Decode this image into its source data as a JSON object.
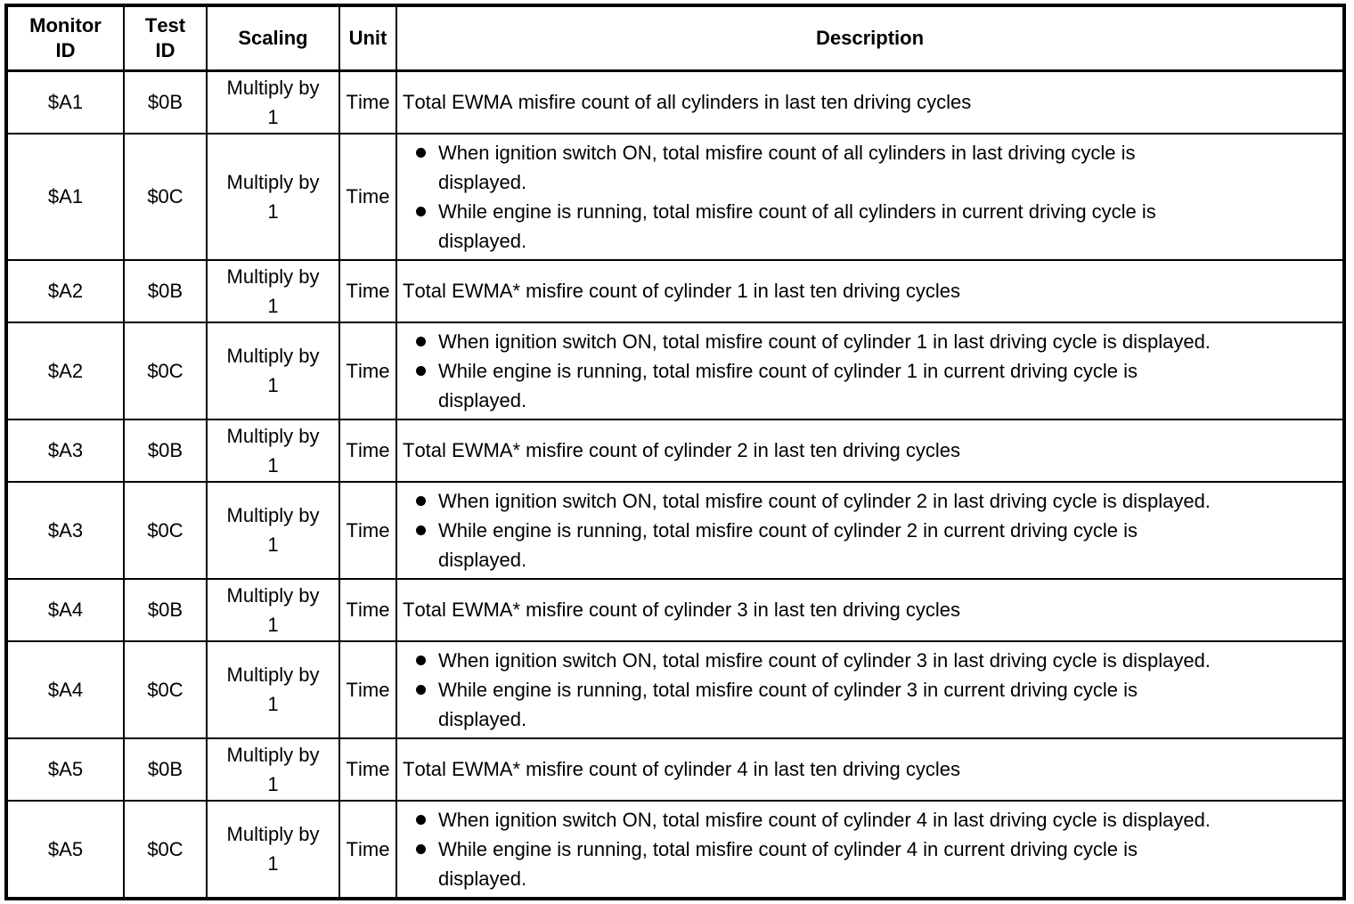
{
  "colors": {
    "ink": "#000000",
    "paper": "#ffffff"
  },
  "table": {
    "headers": [
      "Monitor ID",
      "Test ID",
      "Scaling",
      "Unit",
      "Description"
    ],
    "rows": [
      {
        "monitor_id": "$A1",
        "test_id": "$0B",
        "scaling": "Multiply by 1",
        "unit": "Time",
        "description": {
          "text": "Total EWMA misfire count of all cylinders in last ten driving cycles"
        }
      },
      {
        "monitor_id": "$A1",
        "test_id": "$0C",
        "scaling": "Multiply by 1",
        "unit": "Time",
        "description": {
          "bullets": [
            "When ignition switch ON, total misfire count of all cylinders in last driving cycle is displayed.",
            "While engine is running, total misfire count of all cylinders in current driving cycle is displayed."
          ]
        }
      },
      {
        "monitor_id": "$A2",
        "test_id": "$0B",
        "scaling": "Multiply by 1",
        "unit": "Time",
        "description": {
          "text": "Total EWMA* misfire count of cylinder 1 in last ten driving cycles"
        }
      },
      {
        "monitor_id": "$A2",
        "test_id": "$0C",
        "scaling": "Multiply by 1",
        "unit": "Time",
        "description": {
          "bullets": [
            "When ignition switch ON, total misfire count of cylinder 1 in last driving cycle is displayed.",
            "While engine is running, total misfire count of cylinder 1 in current driving cycle is displayed."
          ]
        }
      },
      {
        "monitor_id": "$A3",
        "test_id": "$0B",
        "scaling": "Multiply by 1",
        "unit": "Time",
        "description": {
          "text": "Total EWMA* misfire count of cylinder 2 in last ten driving cycles"
        }
      },
      {
        "monitor_id": "$A3",
        "test_id": "$0C",
        "scaling": "Multiply by 1",
        "unit": "Time",
        "description": {
          "bullets": [
            "When ignition switch ON, total misfire count of cylinder 2 in last driving cycle is displayed.",
            "While engine is running, total misfire count of cylinder 2 in current driving cycle is displayed."
          ]
        }
      },
      {
        "monitor_id": "$A4",
        "test_id": "$0B",
        "scaling": "Multiply by 1",
        "unit": "Time",
        "description": {
          "text": "Total EWMA* misfire count of cylinder 3 in last ten driving cycles"
        }
      },
      {
        "monitor_id": "$A4",
        "test_id": "$0C",
        "scaling": "Multiply by 1",
        "unit": "Time",
        "description": {
          "bullets": [
            "When ignition switch ON, total misfire count of cylinder 3 in last driving cycle is displayed.",
            "While engine is running, total misfire count of cylinder 3 in current driving cycle is displayed."
          ]
        }
      },
      {
        "monitor_id": "$A5",
        "test_id": "$0B",
        "scaling": "Multiply by 1",
        "unit": "Time",
        "description": {
          "text": "Total EWMA* misfire count of cylinder 4 in last ten driving cycles"
        }
      },
      {
        "monitor_id": "$A5",
        "test_id": "$0C",
        "scaling": "Multiply by 1",
        "unit": "Time",
        "description": {
          "bullets": [
            "When ignition switch ON, total misfire count of cylinder 4 in last driving cycle is displayed.",
            "While engine is running, total misfire count of cylinder 4 in current driving cycle is displayed."
          ]
        }
      }
    ]
  }
}
